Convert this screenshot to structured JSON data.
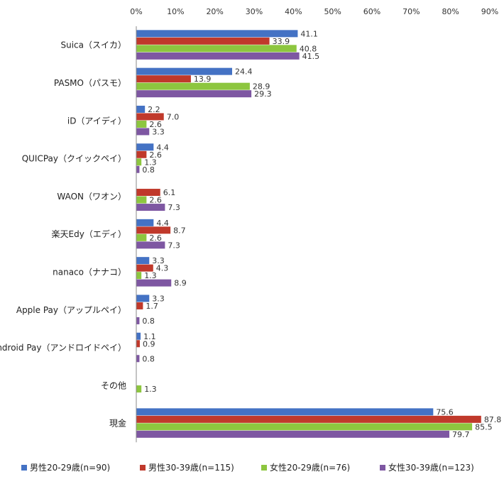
{
  "chart_data": {
    "type": "bar",
    "orientation": "horizontal",
    "categories": [
      "Suica（スイカ）",
      "PASMO（パスモ）",
      "iD（アイディ）",
      "QUICPay（クイックペイ）",
      "WAON（ワオン）",
      "楽天Edy（エディ）",
      "nanaco（ナナコ）",
      "Apple Pay（アップルペイ）",
      "Android Pay（アンドロイドペイ）",
      "その他",
      "現金"
    ],
    "x_ticks": [
      "0%",
      "10%",
      "20%",
      "30%",
      "40%",
      "50%",
      "60%",
      "70%",
      "80%",
      "90%"
    ],
    "xlim": [
      0,
      90
    ],
    "grid": false,
    "legend_position": "bottom",
    "series": [
      {
        "name": "男性20-29歳(n=90)",
        "color": "#4472C4",
        "values": [
          41.1,
          24.4,
          2.2,
          4.4,
          null,
          4.4,
          3.3,
          3.3,
          1.1,
          null,
          75.6
        ]
      },
      {
        "name": "男性30-39歳(n=115)",
        "color": "#C0392B",
        "values": [
          33.9,
          13.9,
          7.0,
          2.6,
          6.1,
          8.7,
          4.3,
          1.7,
          0.9,
          null,
          87.8
        ]
      },
      {
        "name": "女性20-29歳(n=76)",
        "color": "#8DC63F",
        "values": [
          40.8,
          28.9,
          2.6,
          1.3,
          2.6,
          2.6,
          1.3,
          null,
          null,
          1.3,
          85.5
        ]
      },
      {
        "name": "女性30-39歳(n=123)",
        "color": "#7E57A2",
        "values": [
          41.5,
          29.3,
          3.3,
          0.8,
          7.3,
          7.3,
          8.9,
          0.8,
          0.8,
          null,
          79.7
        ]
      }
    ]
  }
}
